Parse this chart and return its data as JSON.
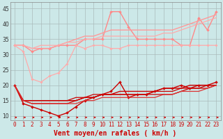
{
  "bg_color": "#cce8e8",
  "grid_color": "#aabbbb",
  "xlabel": "Vent moyen/en rafales ( km/h )",
  "xlabel_color": "#cc0000",
  "xlabel_fontsize": 7,
  "xticks": [
    0,
    1,
    2,
    3,
    4,
    5,
    6,
    7,
    8,
    9,
    10,
    11,
    12,
    13,
    14,
    15,
    16,
    17,
    18,
    19,
    20,
    21,
    22,
    23
  ],
  "yticks": [
    10,
    15,
    20,
    25,
    30,
    35,
    40,
    45
  ],
  "xlim": [
    -0.5,
    23.5
  ],
  "ylim": [
    8.5,
    47
  ],
  "tick_fontsize": 5.5,
  "lines_light": [
    {
      "x": [
        0,
        1,
        2,
        3,
        4,
        5,
        6,
        7,
        8,
        9,
        10,
        11,
        12,
        13,
        14,
        15,
        16,
        17,
        18,
        19,
        20,
        21,
        22,
        23
      ],
      "y": [
        33,
        33,
        31,
        32,
        32,
        33,
        33,
        33,
        35,
        35,
        35,
        44,
        44,
        39,
        35,
        35,
        35,
        35,
        35,
        33,
        33,
        42,
        38,
        44
      ],
      "color": "#ff8888",
      "lw": 1.0,
      "marker": "D",
      "ms": 2.0
    },
    {
      "x": [
        0,
        1,
        2,
        3,
        4,
        5,
        6,
        7,
        8,
        9,
        10,
        11,
        12,
        13,
        14,
        15,
        16,
        17,
        18,
        19,
        20,
        21,
        22,
        23
      ],
      "y": [
        33,
        33,
        32,
        32,
        32,
        33,
        34,
        35,
        36,
        36,
        37,
        38,
        38,
        38,
        38,
        38,
        38,
        38,
        38,
        39,
        40,
        41,
        42,
        43
      ],
      "color": "#ff9999",
      "lw": 1.0,
      "marker": null,
      "ms": 0
    },
    {
      "x": [
        0,
        1,
        2,
        3,
        4,
        5,
        6,
        7,
        8,
        9,
        10,
        11,
        12,
        13,
        14,
        15,
        16,
        17,
        18,
        19,
        20,
        21,
        22,
        23
      ],
      "y": [
        33,
        33,
        32,
        33,
        33,
        33,
        34,
        34,
        35,
        35,
        36,
        36,
        36,
        36,
        36,
        36,
        36,
        37,
        37,
        38,
        39,
        40,
        41,
        42
      ],
      "color": "#ffaaaa",
      "lw": 0.9,
      "marker": null,
      "ms": 0
    },
    {
      "x": [
        0,
        1,
        2,
        3,
        4,
        5,
        6,
        7,
        8,
        9,
        10,
        11,
        12,
        13,
        14,
        15,
        16,
        17,
        18,
        19,
        20,
        21,
        22,
        23
      ],
      "y": [
        33,
        31,
        22,
        21,
        23,
        24,
        27,
        33,
        32,
        33,
        33,
        32,
        32,
        33,
        33,
        33,
        33,
        33,
        33,
        33,
        33,
        33,
        33,
        33
      ],
      "color": "#ffaaaa",
      "lw": 0.9,
      "marker": "D",
      "ms": 1.8
    }
  ],
  "lines_dark": [
    {
      "x": [
        0,
        1,
        2,
        3,
        4,
        5,
        6,
        7,
        8,
        9,
        10,
        11,
        12,
        13,
        14,
        15,
        16,
        17,
        18,
        19,
        20,
        21,
        22,
        23
      ],
      "y": [
        20,
        14,
        13,
        12,
        11,
        10,
        11,
        13,
        15,
        16,
        17,
        18,
        21,
        16,
        17,
        17,
        18,
        19,
        19,
        20,
        19,
        20,
        20,
        21
      ],
      "color": "#cc0000",
      "lw": 1.0,
      "marker": "D",
      "ms": 2.0
    },
    {
      "x": [
        0,
        1,
        2,
        3,
        4,
        5,
        6,
        7,
        8,
        9,
        10,
        11,
        12,
        13,
        14,
        15,
        16,
        17,
        18,
        19,
        20,
        21,
        22,
        23
      ],
      "y": [
        20,
        15,
        15,
        15,
        15,
        15,
        15,
        15,
        16,
        16,
        17,
        17,
        18,
        18,
        18,
        18,
        18,
        19,
        19,
        19,
        20,
        20,
        20,
        20
      ],
      "color": "#cc0000",
      "lw": 1.0,
      "marker": null,
      "ms": 0
    },
    {
      "x": [
        0,
        1,
        2,
        3,
        4,
        5,
        6,
        7,
        8,
        9,
        10,
        11,
        12,
        13,
        14,
        15,
        16,
        17,
        18,
        19,
        20,
        21,
        22,
        23
      ],
      "y": [
        20,
        15,
        15,
        15,
        15,
        15,
        15,
        16,
        16,
        17,
        17,
        17,
        17,
        17,
        17,
        17,
        18,
        18,
        18,
        19,
        19,
        19,
        20,
        20
      ],
      "color": "#cc0000",
      "lw": 0.9,
      "marker": null,
      "ms": 0
    },
    {
      "x": [
        0,
        1,
        2,
        3,
        4,
        5,
        6,
        7,
        8,
        9,
        10,
        11,
        12,
        13,
        14,
        15,
        16,
        17,
        18,
        19,
        20,
        21,
        22,
        23
      ],
      "y": [
        20,
        15,
        14,
        14,
        14,
        14,
        14,
        15,
        16,
        16,
        17,
        17,
        17,
        17,
        17,
        17,
        17,
        17,
        17,
        18,
        19,
        19,
        19,
        20
      ],
      "color": "#cc0000",
      "lw": 0.9,
      "marker": null,
      "ms": 0
    },
    {
      "x": [
        0,
        1,
        2,
        3,
        4,
        5,
        6,
        7,
        8,
        9,
        10,
        11,
        12,
        13,
        14,
        15,
        16,
        17,
        18,
        19,
        20,
        21,
        22,
        23
      ],
      "y": [
        20,
        15,
        14,
        14,
        14,
        14,
        14,
        14,
        15,
        15,
        16,
        16,
        16,
        16,
        16,
        16,
        16,
        17,
        17,
        18,
        18,
        18,
        19,
        20
      ],
      "color": "#dd3333",
      "lw": 0.9,
      "marker": null,
      "ms": 0
    }
  ],
  "arrow_color": "#cc0000"
}
